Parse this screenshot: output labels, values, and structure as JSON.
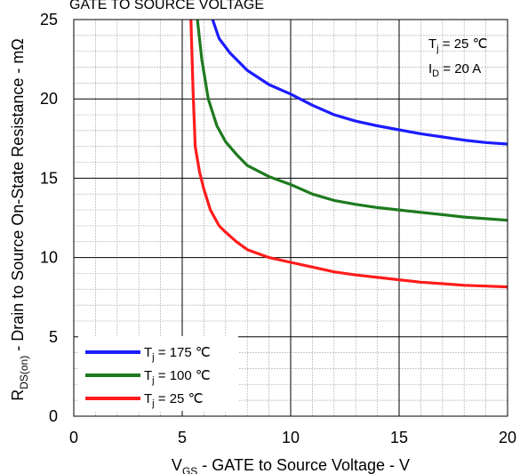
{
  "chart_data": {
    "type": "line",
    "title": "GATE TO SOURCE VOLTAGE",
    "xlabel": {
      "main": "V",
      "sub": "GS",
      "rest": " - GATE to Source Voltage - V"
    },
    "ylabel": {
      "main": "R",
      "sub": "DS(on)",
      "rest": " - Drain to Source On-State Resistance - mΩ"
    },
    "xlim": [
      0,
      20
    ],
    "ylim": [
      0,
      25
    ],
    "xticks": [
      "0",
      "5",
      "10",
      "15",
      "20"
    ],
    "yticks": [
      "0",
      "5",
      "10",
      "15",
      "20",
      "25"
    ],
    "grid": true,
    "legend_position": "bottom-left",
    "annotations": [
      {
        "main": "T",
        "sub": "j",
        "rest": " = 25 ℃"
      },
      {
        "main": "I",
        "sub": "D",
        "rest": " = 20 A"
      }
    ],
    "series": [
      {
        "name": {
          "main": "T",
          "sub": "j",
          "rest": " = 175 ℃"
        },
        "color": "#1c1cff",
        "x": [
          6.4,
          6.7,
          7.2,
          8,
          9,
          10,
          11,
          12,
          13,
          14,
          15,
          16,
          17,
          18,
          19,
          20
        ],
        "y": [
          25,
          23.8,
          22.9,
          21.8,
          20.9,
          20.3,
          19.6,
          19.0,
          18.6,
          18.3,
          18.05,
          17.8,
          17.6,
          17.4,
          17.25,
          17.15
        ]
      },
      {
        "name": {
          "main": "T",
          "sub": "j",
          "rest": " = 100 ℃"
        },
        "color": "#1e7a1e",
        "x": [
          5.7,
          5.9,
          6.2,
          6.6,
          7,
          7.5,
          8,
          9,
          10,
          11,
          12,
          13,
          14,
          15,
          16,
          17,
          18,
          19,
          20
        ],
        "y": [
          25,
          22.5,
          20.0,
          18.3,
          17.3,
          16.5,
          15.8,
          15.1,
          14.6,
          14.0,
          13.6,
          13.35,
          13.15,
          13.0,
          12.85,
          12.7,
          12.55,
          12.45,
          12.35
        ]
      },
      {
        "name": {
          "main": "T",
          "sub": "j",
          "rest": " = 25 ℃"
        },
        "color": "#ff1c1c",
        "x": [
          5.4,
          5.5,
          5.6,
          5.8,
          6,
          6.3,
          6.7,
          7,
          7.5,
          8,
          9,
          10,
          11,
          12,
          13,
          14,
          15,
          16,
          17,
          18,
          19,
          20
        ],
        "y": [
          25,
          20.5,
          17.0,
          15.4,
          14.3,
          13.0,
          12.0,
          11.6,
          11.0,
          10.5,
          10.0,
          9.7,
          9.4,
          9.1,
          8.9,
          8.75,
          8.6,
          8.45,
          8.35,
          8.25,
          8.2,
          8.15
        ]
      }
    ]
  }
}
